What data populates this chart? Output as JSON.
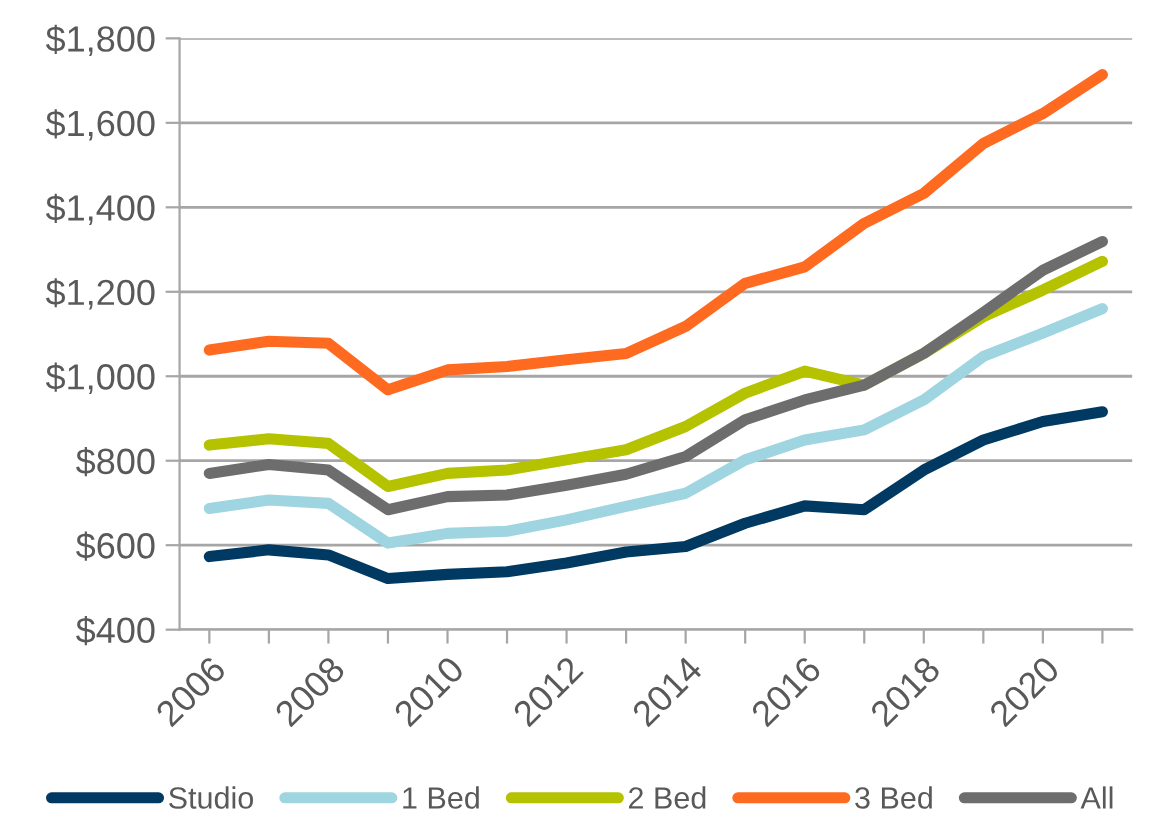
{
  "chart_data": {
    "type": "line",
    "categories": [
      "2006",
      null,
      "2008",
      null,
      "2010",
      null,
      "2012",
      null,
      "2014",
      null,
      "2016",
      null,
      "2018",
      null,
      "2020",
      null
    ],
    "series": [
      {
        "name": "Studio",
        "color": "#003a63",
        "values": [
          573,
          589,
          577,
          521,
          531,
          537,
          558,
          584,
          597,
          652,
          693,
          684,
          778,
          849,
          893,
          916
        ]
      },
      {
        "name": "1 Bed",
        "color": "#9fd5e0",
        "values": [
          687,
          707,
          699,
          605,
          628,
          633,
          660,
          692,
          723,
          802,
          849,
          873,
          944,
          1047,
          1102,
          1160
        ]
      },
      {
        "name": "2 Bed",
        "color": "#b5c200",
        "values": [
          837,
          852,
          841,
          739,
          770,
          778,
          802,
          826,
          881,
          960,
          1012,
          979,
          1054,
          1141,
          1204,
          1272
        ]
      },
      {
        "name": "3 Bed",
        "color": "#ff6a21",
        "values": [
          1062,
          1083,
          1078,
          968,
          1015,
          1023,
          1039,
          1054,
          1118,
          1220,
          1259,
          1362,
          1433,
          1551,
          1622,
          1714
        ]
      },
      {
        "name": "All",
        "color": "#6d6d6d",
        "values": [
          770,
          791,
          778,
          684,
          715,
          719,
          742,
          768,
          810,
          897,
          944,
          979,
          1054,
          1151,
          1251,
          1319
        ]
      }
    ],
    "ylim": [
      400,
      1800
    ],
    "yticks": [
      {
        "value": 400,
        "label": "$400"
      },
      {
        "value": 600,
        "label": "$600"
      },
      {
        "value": 800,
        "label": "$800"
      },
      {
        "value": 1000,
        "label": "$1,000"
      },
      {
        "value": 1200,
        "label": "$1,200"
      },
      {
        "value": 1400,
        "label": "$1,400"
      },
      {
        "value": 1600,
        "label": "$1,600"
      },
      {
        "value": 1800,
        "label": "$1,800"
      }
    ],
    "grid": "y",
    "legend": "bottom",
    "marker": "none",
    "line_style": "solid"
  }
}
